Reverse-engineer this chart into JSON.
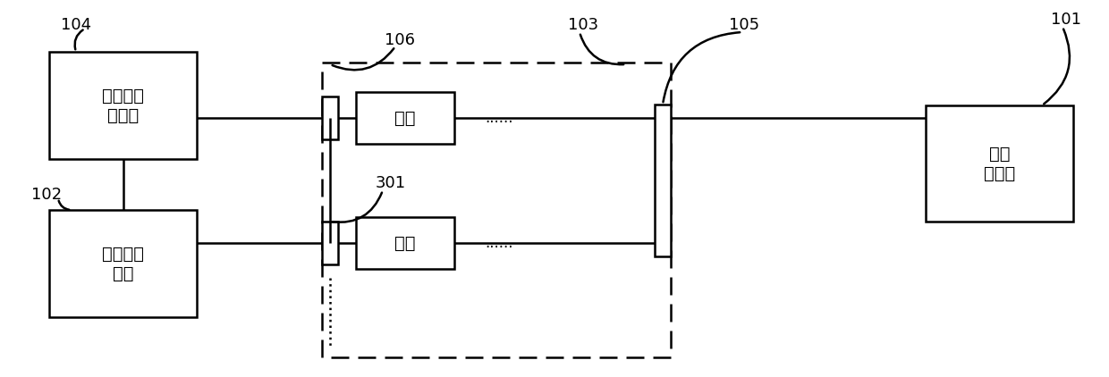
{
  "bg_color": "#ffffff",
  "label_104": "104",
  "label_102": "102",
  "label_101": "101",
  "label_103": "103",
  "label_105": "105",
  "label_106": "106",
  "label_301": "301",
  "box104_text": "待测车载\n充电机",
  "box102_text": "信号发生\n器组",
  "box101_text": "低压\n直流源",
  "switch_text": "开关",
  "dots": "......",
  "font_size_label": 13,
  "font_size_box": 14,
  "font_size_switch": 14,
  "lw": 1.8
}
